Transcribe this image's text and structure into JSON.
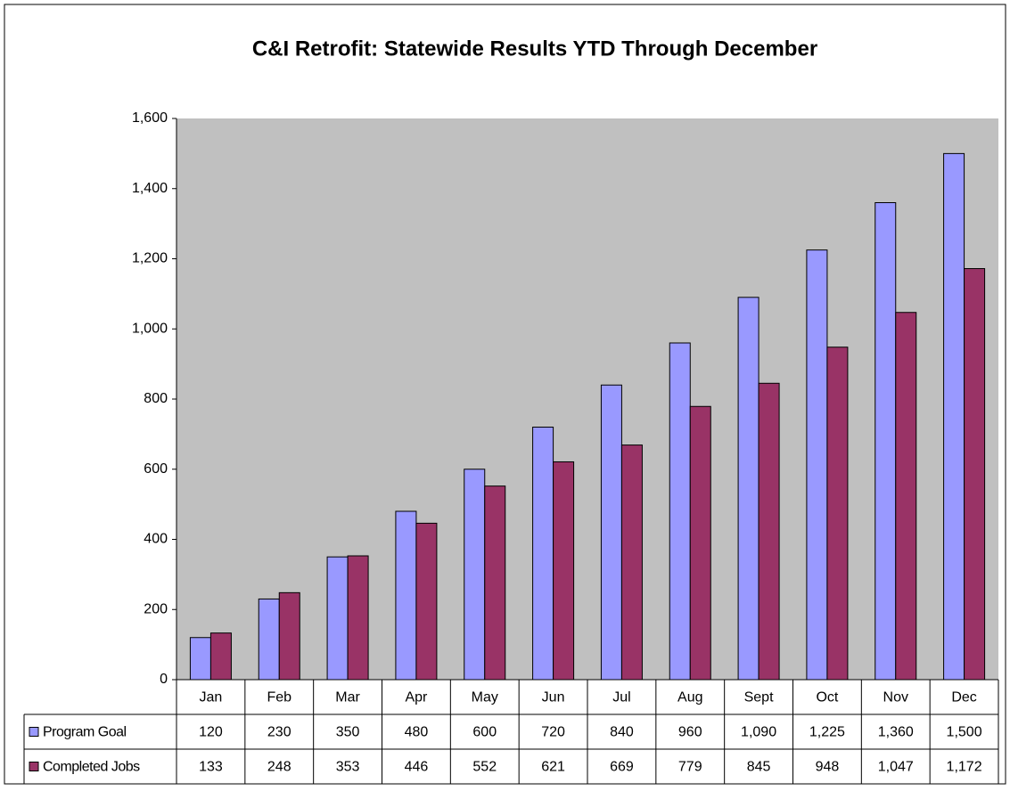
{
  "chart_data": {
    "type": "bar",
    "title": "C&I Retrofit: Statewide Results YTD Through December",
    "categories": [
      "Jan",
      "Feb",
      "Mar",
      "Apr",
      "May",
      "Jun",
      "Jul",
      "Aug",
      "Sept",
      "Oct",
      "Nov",
      "Dec"
    ],
    "series": [
      {
        "name": "Program Goal",
        "color": "#9999ff",
        "values": [
          120,
          230,
          350,
          480,
          600,
          720,
          840,
          960,
          1090,
          1225,
          1360,
          1500
        ],
        "value_labels": [
          "120",
          "230",
          "350",
          "480",
          "600",
          "720",
          "840",
          "960",
          "1,090",
          "1,225",
          "1,360",
          "1,500"
        ]
      },
      {
        "name": "Completed Jobs",
        "color": "#993366",
        "values": [
          133,
          248,
          353,
          446,
          552,
          621,
          669,
          779,
          845,
          948,
          1047,
          1172
        ],
        "value_labels": [
          "133",
          "248",
          "353",
          "446",
          "552",
          "621",
          "669",
          "779",
          "845",
          "948",
          "1,047",
          "1,172"
        ]
      }
    ],
    "ylim": [
      0,
      1600
    ],
    "yticks": [
      0,
      200,
      400,
      600,
      800,
      {
        "value": 1000,
        "label": "1,000"
      },
      {
        "value": 1200,
        "label": "1,200"
      },
      {
        "value": 1400,
        "label": "1,400"
      },
      {
        "value": 1600,
        "label": "1,600"
      }
    ],
    "grid": false
  }
}
